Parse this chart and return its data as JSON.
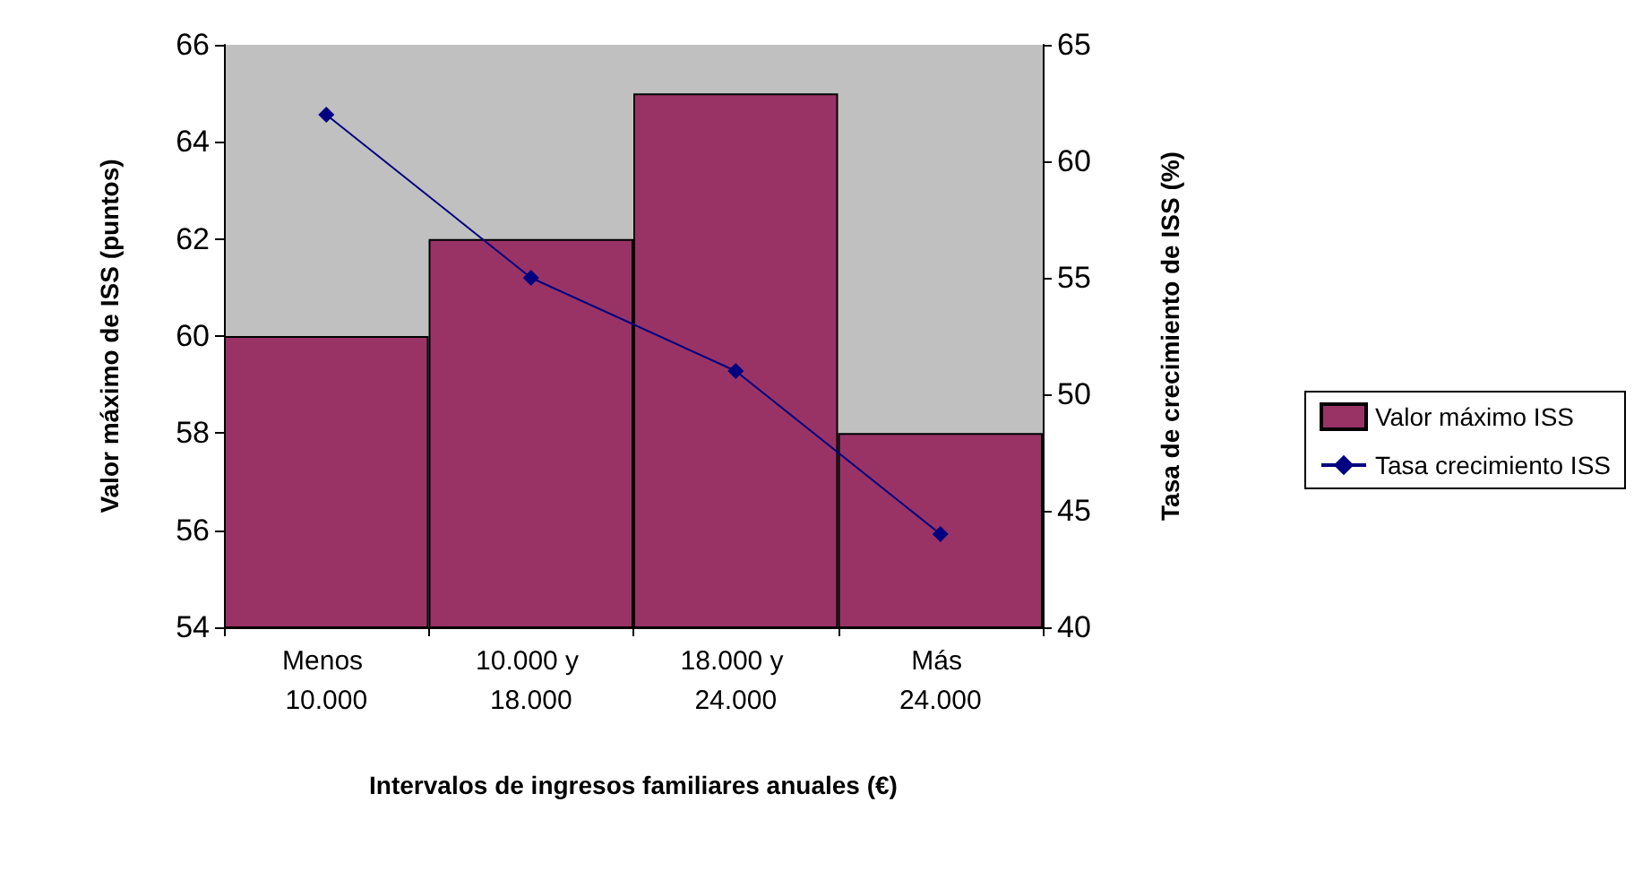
{
  "chart_data": {
    "type": "bar",
    "xlabel": "Intervalos de ingresos familiares anuales (€)",
    "ylabel": "Valor máximo de ISS (puntos)",
    "y2label": "Tasa de crecimiento de ISS (%)",
    "categories": [
      "Menos 10.000",
      "10.000 y 18.000",
      "18.000 y 24.000",
      "Más 24.000"
    ],
    "series": [
      {
        "name": "Valor máximo ISS",
        "color": "#993366",
        "values": [
          60,
          62,
          65,
          58
        ]
      },
      {
        "name": "Tasa crecimiento ISS",
        "type": "line",
        "axis": "y2",
        "color": "#000080",
        "values": [
          62,
          55,
          51,
          44
        ],
        "marker": "diamond"
      }
    ],
    "ylim": [
      54,
      66
    ],
    "yticks": [
      54,
      56,
      58,
      60,
      62,
      64,
      66
    ],
    "y2lim": [
      40,
      65
    ],
    "y2ticks": [
      40,
      45,
      50,
      55,
      60,
      65
    ],
    "grid": false,
    "legend": "right"
  }
}
